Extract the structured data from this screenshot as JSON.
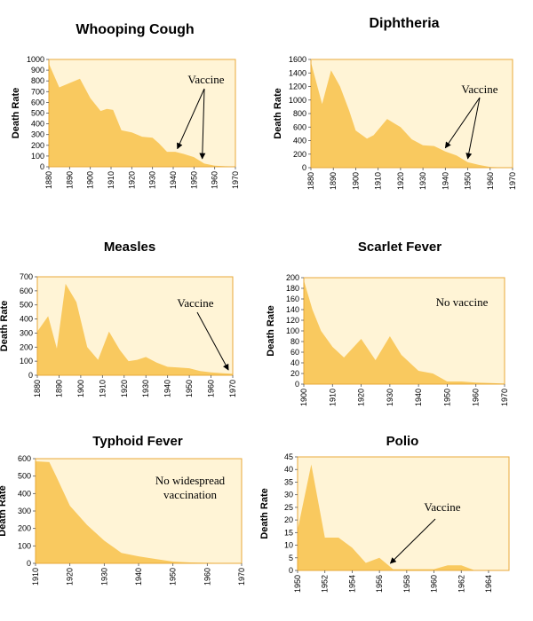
{
  "colors": {
    "fill": "#f9c95f",
    "plot_bg": "#fff4d6",
    "frame": "#e8a93a"
  },
  "chart_data": [
    {
      "type": "area",
      "title": "Whooping Cough",
      "ylabel": "Death Rate",
      "xlim": [
        1880,
        1970
      ],
      "ylim": [
        0,
        1000
      ],
      "xticks": [
        "1880",
        "1890",
        "1900",
        "1910",
        "1920",
        "1930",
        "1940",
        "1950",
        "1960",
        "1970"
      ],
      "yticks": [
        "0",
        "100",
        "200",
        "300",
        "400",
        "500",
        "600",
        "700",
        "800",
        "900",
        "1000"
      ],
      "x": [
        1880,
        1885,
        1890,
        1895,
        1900,
        1905,
        1908,
        1911,
        1915,
        1920,
        1925,
        1930,
        1933,
        1937,
        1941,
        1945,
        1950,
        1955,
        1960,
        1965,
        1970
      ],
      "values": [
        960,
        740,
        780,
        820,
        640,
        520,
        540,
        530,
        340,
        320,
        280,
        270,
        220,
        140,
        140,
        120,
        90,
        30,
        10,
        5,
        2
      ],
      "annotation": {
        "text": "Vaccine",
        "arrows_to": [
          1942,
          1954
        ]
      }
    },
    {
      "type": "area",
      "title": "Diphtheria",
      "ylabel": "Death Rate",
      "xlim": [
        1880,
        1970
      ],
      "ylim": [
        0,
        1600
      ],
      "xticks": [
        "1880",
        "1890",
        "1900",
        "1910",
        "1920",
        "1930",
        "1940",
        "1950",
        "1960",
        "1970"
      ],
      "yticks": [
        "0",
        "200",
        "400",
        "600",
        "800",
        "1000",
        "1200",
        "1400",
        "1600"
      ],
      "x": [
        1880,
        1885,
        1889,
        1893,
        1897,
        1900,
        1905,
        1908,
        1914,
        1918,
        1920,
        1925,
        1930,
        1935,
        1940,
        1945,
        1950,
        1955,
        1960,
        1965,
        1970
      ],
      "values": [
        1560,
        940,
        1440,
        1200,
        850,
        550,
        430,
        480,
        720,
        640,
        600,
        420,
        330,
        320,
        240,
        180,
        80,
        40,
        10,
        5,
        3
      ],
      "annotation": {
        "text": "Vaccine",
        "arrows_to": [
          1940,
          1950
        ]
      }
    },
    {
      "type": "area",
      "title": "Measles",
      "ylabel": "Death Rate",
      "xlim": [
        1880,
        1970
      ],
      "ylim": [
        0,
        700
      ],
      "xticks": [
        "1880",
        "1890",
        "1900",
        "1910",
        "1920",
        "1930",
        "1940",
        "1950",
        "1960",
        "1970"
      ],
      "yticks": [
        "0",
        "100",
        "200",
        "300",
        "400",
        "500",
        "600",
        "700"
      ],
      "x": [
        1880,
        1885,
        1889,
        1893,
        1898,
        1903,
        1908,
        1913,
        1918,
        1922,
        1926,
        1930,
        1935,
        1940,
        1945,
        1950,
        1955,
        1960,
        1965,
        1970
      ],
      "values": [
        310,
        420,
        190,
        650,
        520,
        200,
        110,
        310,
        180,
        100,
        110,
        130,
        90,
        60,
        55,
        50,
        30,
        20,
        15,
        10
      ],
      "annotation": {
        "text": "Vaccine",
        "arrows_to": [
          1968
        ]
      }
    },
    {
      "type": "area",
      "title": "Scarlet Fever",
      "ylabel": "Death Rate",
      "xlim": [
        1900,
        1970
      ],
      "ylim": [
        0,
        200
      ],
      "xticks": [
        "1900",
        "1910",
        "1920",
        "1930",
        "1940",
        "1950",
        "1960",
        "1970"
      ],
      "yticks": [
        "0",
        "20",
        "40",
        "60",
        "80",
        "100",
        "120",
        "140",
        "160",
        "180",
        "200"
      ],
      "x": [
        1900,
        1903,
        1906,
        1910,
        1914,
        1920,
        1925,
        1930,
        1934,
        1940,
        1945,
        1950,
        1955,
        1960,
        1965,
        1970
      ],
      "values": [
        195,
        140,
        100,
        70,
        50,
        85,
        45,
        90,
        55,
        25,
        20,
        5,
        5,
        3,
        2,
        1
      ],
      "annotation": {
        "text": "No vaccine"
      }
    },
    {
      "type": "area",
      "title": "Typhoid Fever",
      "ylabel": "Death Rate",
      "xlim": [
        1910,
        1970
      ],
      "ylim": [
        0,
        600
      ],
      "xticks": [
        "1910",
        "1920",
        "1930",
        "1940",
        "1950",
        "1960",
        "1970"
      ],
      "yticks": [
        "0",
        "100",
        "200",
        "300",
        "400",
        "500",
        "600"
      ],
      "x": [
        1910,
        1914,
        1916,
        1920,
        1925,
        1930,
        1935,
        1940,
        1945,
        1950,
        1955,
        1960,
        1965,
        1970
      ],
      "values": [
        585,
        580,
        500,
        330,
        220,
        130,
        60,
        40,
        25,
        10,
        5,
        3,
        2,
        1
      ],
      "annotation": {
        "text": "No widespread vaccination"
      }
    },
    {
      "type": "area",
      "title": "Polio",
      "ylabel": "Death Rate",
      "xlim": [
        1950,
        1965.5
      ],
      "ylim": [
        0,
        45
      ],
      "xticks": [
        "1950",
        "1952",
        "1954",
        "1956",
        "1958",
        "1960",
        "1962",
        "1964"
      ],
      "yticks": [
        "0",
        "5",
        "10",
        "15",
        "20",
        "25",
        "30",
        "35",
        "40",
        "45"
      ],
      "x": [
        1950,
        1951,
        1952,
        1953,
        1954,
        1955,
        1956,
        1957,
        1958,
        1959,
        1960,
        1961,
        1962,
        1963,
        1964,
        1965.5
      ],
      "values": [
        16,
        42,
        13,
        13,
        9,
        3,
        5,
        0.5,
        0.5,
        0.5,
        0.5,
        2,
        2,
        0,
        0,
        0
      ],
      "annotation": {
        "text": "Vaccine",
        "arrows_to": [
          1956.8
        ]
      }
    }
  ]
}
